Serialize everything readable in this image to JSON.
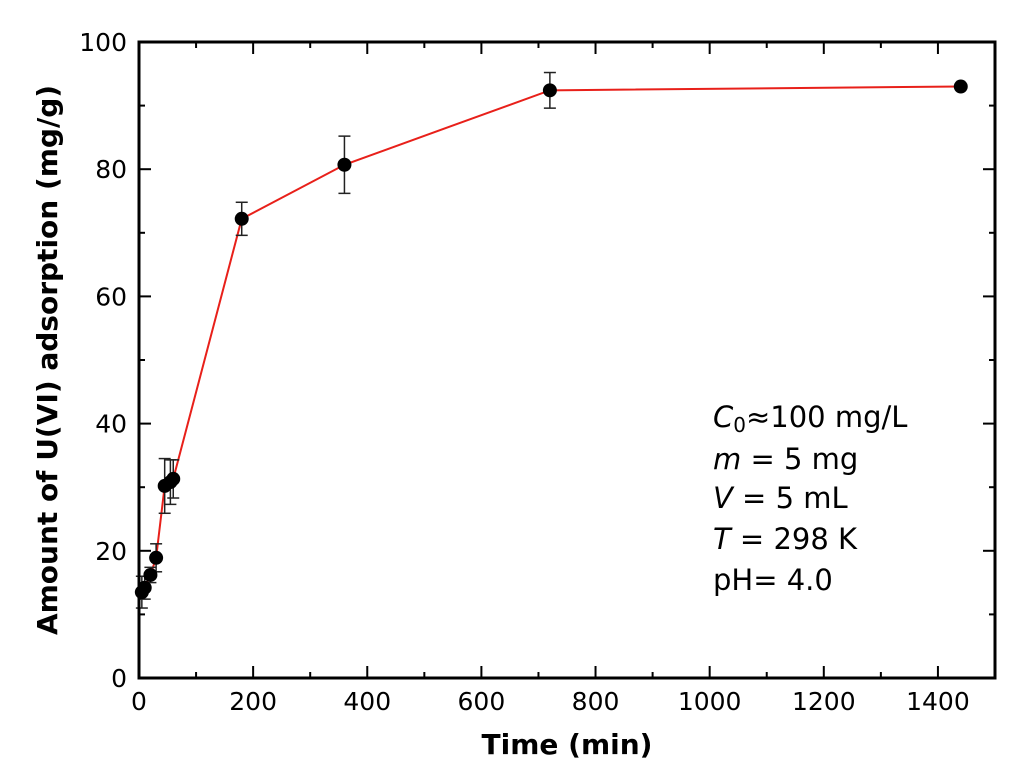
{
  "chart_data": {
    "type": "line",
    "xlabel": "Time (min)",
    "ylabel": "Amount of U(VI) adsorption (mg/g)",
    "xlim": [
      0,
      1500
    ],
    "ylim": [
      0,
      100
    ],
    "xticks": [
      0,
      200,
      400,
      600,
      800,
      1000,
      1200,
      1400
    ],
    "yticks": [
      0,
      20,
      40,
      60,
      80,
      100
    ],
    "xticklabels": [
      "0",
      "200",
      "400",
      "600",
      "800",
      "1000",
      "1200",
      "1400"
    ],
    "yticklabels": [
      "0",
      "20",
      "40",
      "60",
      "80",
      "100"
    ],
    "x_minor_step": 100,
    "y_minor_step": 10,
    "grid": false,
    "line_color": "#e8201a",
    "marker_color": "#000000",
    "series": [
      {
        "name": "U(VI) adsorption",
        "x": [
          5,
          10,
          20,
          30,
          45,
          55,
          60,
          180,
          360,
          720,
          1440
        ],
        "y": [
          13.5,
          14.2,
          16.2,
          18.9,
          30.2,
          30.8,
          31.3,
          72.2,
          80.7,
          92.4,
          93.0
        ],
        "err": [
          2.5,
          1.8,
          1.2,
          2.2,
          4.3,
          3.5,
          3.0,
          2.6,
          4.5,
          2.8,
          0
        ]
      }
    ],
    "annotation": {
      "c0": {
        "symbol": "C",
        "sub": "0",
        "rest": "≈100 mg/L"
      },
      "lines": [
        {
          "symbol": "m",
          "rest": " = 5 mg"
        },
        {
          "symbol": "V",
          "rest": " = 5 mL"
        },
        {
          "symbol": "T",
          "rest": " = 298 K"
        },
        {
          "symbol": "",
          "rest": "pH= 4.0"
        }
      ]
    }
  }
}
